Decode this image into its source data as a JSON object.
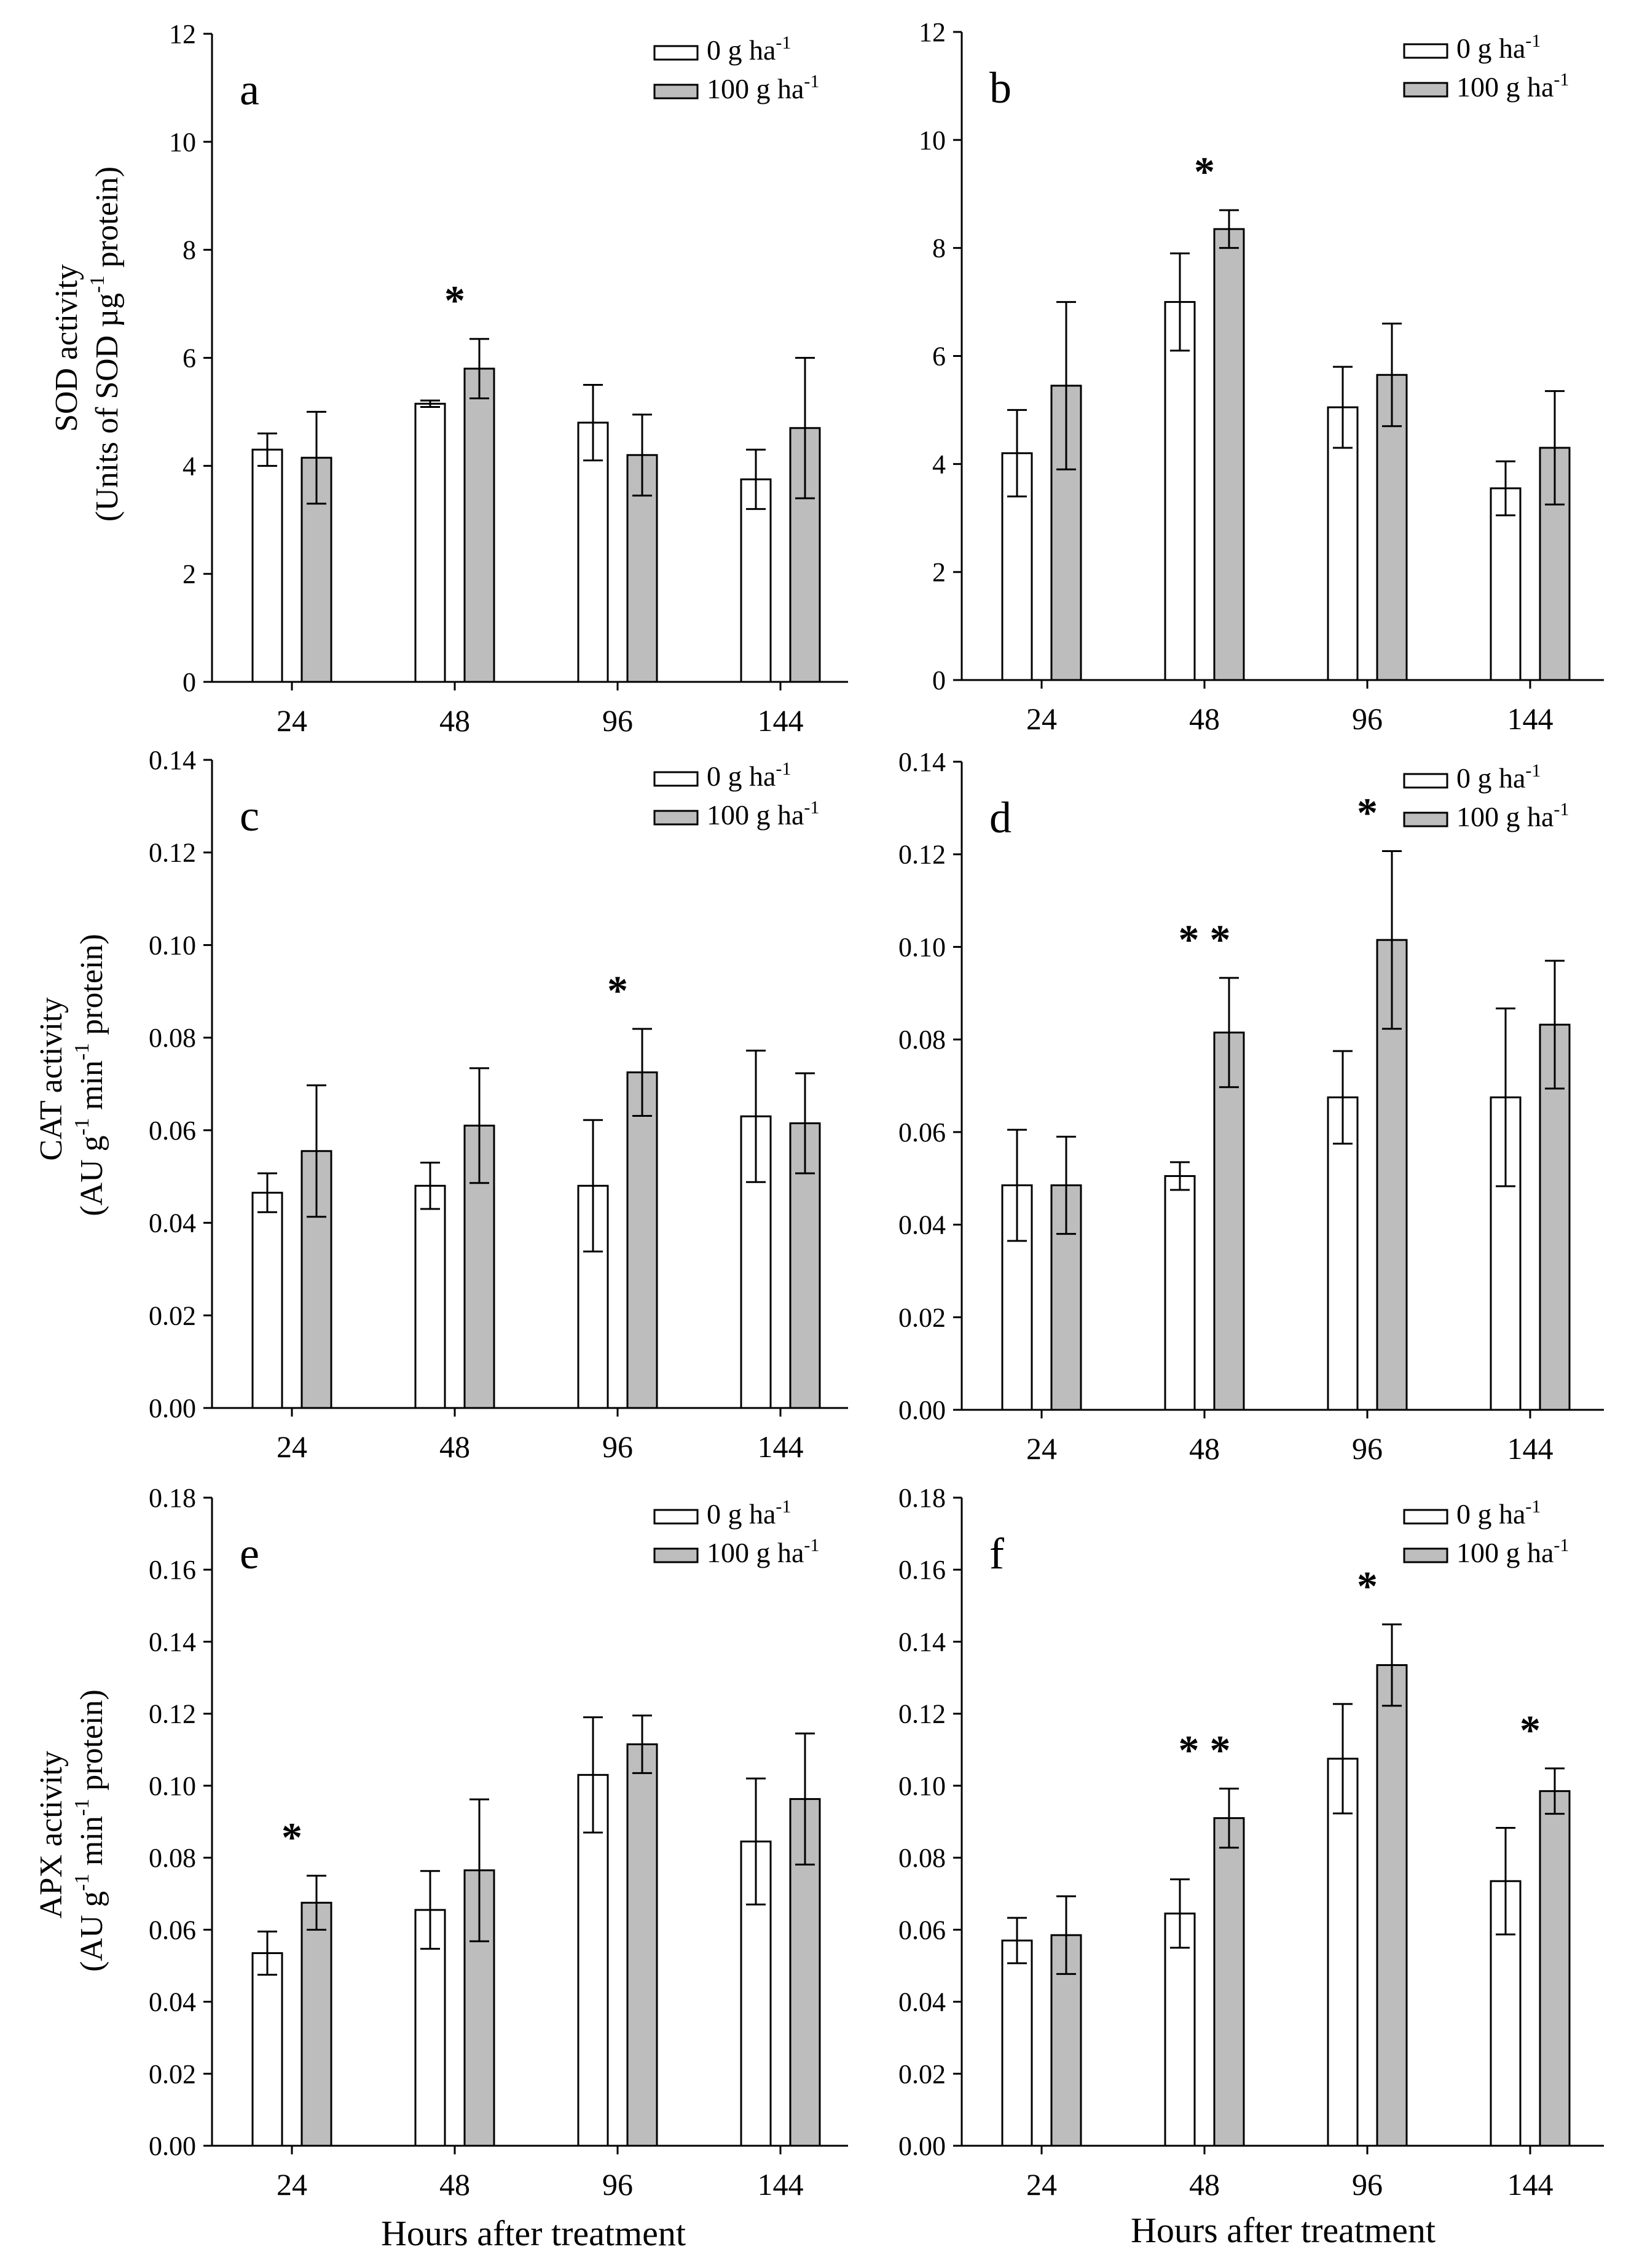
{
  "colors": {
    "control": "#ffffff",
    "treated": "#bdbdbd",
    "ink": "#000000"
  },
  "legend": {
    "control_label": "0 g ha",
    "treated_label": "100 g ha",
    "exponent": "-1"
  },
  "x_axis_label": "Hours after treatment",
  "chart_data": [
    {
      "type": "bar",
      "panel": "a",
      "enzyme": "SOD",
      "ylabel_line1": "SOD activity",
      "ylabel_line2": [
        "(Units of SOD µg",
        "-1",
        " protein)"
      ],
      "categories": [
        "24",
        "48",
        "96",
        "144"
      ],
      "ylim": [
        0,
        12
      ],
      "yticks": [
        "0",
        "2",
        "4",
        "6",
        "8",
        "10",
        "12"
      ],
      "series": [
        {
          "name": "0 g ha-1",
          "values": [
            4.3,
            5.15,
            4.8,
            3.75
          ],
          "errors": [
            0.3,
            0.06,
            0.7,
            0.55
          ]
        },
        {
          "name": "100 g ha-1",
          "values": [
            4.15,
            5.8,
            4.2,
            4.7
          ],
          "errors": [
            0.85,
            0.55,
            0.75,
            1.3
          ]
        }
      ],
      "significance": [
        "",
        "*",
        "",
        ""
      ]
    },
    {
      "type": "bar",
      "panel": "b",
      "enzyme": "SOD",
      "categories": [
        "24",
        "48",
        "96",
        "144"
      ],
      "ylim": [
        0,
        12
      ],
      "yticks": [
        "0",
        "2",
        "4",
        "6",
        "8",
        "10",
        "12"
      ],
      "series": [
        {
          "name": "0 g ha-1",
          "values": [
            4.2,
            7.0,
            5.05,
            3.55
          ],
          "errors": [
            0.8,
            0.9,
            0.75,
            0.5
          ]
        },
        {
          "name": "100 g ha-1",
          "values": [
            5.45,
            8.35,
            5.65,
            4.3
          ],
          "errors": [
            1.55,
            0.35,
            0.95,
            1.05
          ]
        }
      ],
      "significance": [
        "",
        "*",
        "",
        ""
      ]
    },
    {
      "type": "bar",
      "panel": "c",
      "enzyme": "CAT",
      "ylabel_line1": "CAT activity",
      "ylabel_line2": [
        "(AU g",
        "-1",
        " min",
        "-1",
        " protein)"
      ],
      "categories": [
        "24",
        "48",
        "96",
        "144"
      ],
      "ylim": [
        0,
        0.14
      ],
      "yticks": [
        "0.00",
        "0.02",
        "0.04",
        "0.06",
        "0.08",
        "0.10",
        "0.12",
        "0.14"
      ],
      "series": [
        {
          "name": "0 g ha-1",
          "values": [
            0.0465,
            0.048,
            0.048,
            0.063
          ],
          "errors": [
            0.0042,
            0.005,
            0.0142,
            0.0142
          ]
        },
        {
          "name": "100 g ha-1",
          "values": [
            0.0555,
            0.061,
            0.0725,
            0.0615
          ],
          "errors": [
            0.0142,
            0.0124,
            0.0094,
            0.0108
          ]
        }
      ],
      "significance": [
        "",
        "",
        "*",
        ""
      ]
    },
    {
      "type": "bar",
      "panel": "d",
      "enzyme": "CAT",
      "categories": [
        "24",
        "48",
        "96",
        "144"
      ],
      "ylim": [
        0,
        0.14
      ],
      "yticks": [
        "0.00",
        "0.02",
        "0.04",
        "0.06",
        "0.08",
        "0.10",
        "0.12",
        "0.14"
      ],
      "series": [
        {
          "name": "0 g ha-1",
          "values": [
            0.0485,
            0.0505,
            0.0675,
            0.0675
          ],
          "errors": [
            0.012,
            0.003,
            0.01,
            0.0192
          ]
        },
        {
          "name": "100 g ha-1",
          "values": [
            0.0485,
            0.0815,
            0.1015,
            0.0832
          ],
          "errors": [
            0.0105,
            0.0118,
            0.0192,
            0.0138
          ]
        }
      ],
      "significance": [
        "",
        "**",
        "*",
        ""
      ]
    },
    {
      "type": "bar",
      "panel": "e",
      "enzyme": "APX",
      "ylabel_line1": "APX activity",
      "ylabel_line2": [
        "(AU g",
        "-1",
        " min",
        "-1",
        " protein)"
      ],
      "categories": [
        "24",
        "48",
        "96",
        "144"
      ],
      "ylim": [
        0,
        0.18
      ],
      "yticks": [
        "0.00",
        "0.02",
        "0.04",
        "0.06",
        "0.08",
        "0.10",
        "0.12",
        "0.14",
        "0.16",
        "0.18"
      ],
      "series": [
        {
          "name": "0 g ha-1",
          "values": [
            0.0535,
            0.0655,
            0.103,
            0.0845
          ],
          "errors": [
            0.006,
            0.0108,
            0.016,
            0.0175
          ]
        },
        {
          "name": "100 g ha-1",
          "values": [
            0.0675,
            0.0765,
            0.1115,
            0.0963
          ],
          "errors": [
            0.0075,
            0.0197,
            0.008,
            0.0182
          ]
        }
      ],
      "significance": [
        "*",
        "",
        "",
        ""
      ]
    },
    {
      "type": "bar",
      "panel": "f",
      "enzyme": "APX",
      "categories": [
        "24",
        "48",
        "96",
        "144"
      ],
      "ylim": [
        0,
        0.18
      ],
      "yticks": [
        "0.00",
        "0.02",
        "0.04",
        "0.06",
        "0.08",
        "0.10",
        "0.12",
        "0.14",
        "0.16",
        "0.18"
      ],
      "series": [
        {
          "name": "0 g ha-1",
          "values": [
            0.057,
            0.0645,
            0.1075,
            0.0735
          ],
          "errors": [
            0.0063,
            0.0095,
            0.0152,
            0.0148
          ]
        },
        {
          "name": "100 g ha-1",
          "values": [
            0.0585,
            0.091,
            0.1335,
            0.0985
          ],
          "errors": [
            0.0108,
            0.0082,
            0.0113,
            0.0063
          ]
        }
      ],
      "significance": [
        "",
        "**",
        "*",
        "*"
      ]
    }
  ]
}
